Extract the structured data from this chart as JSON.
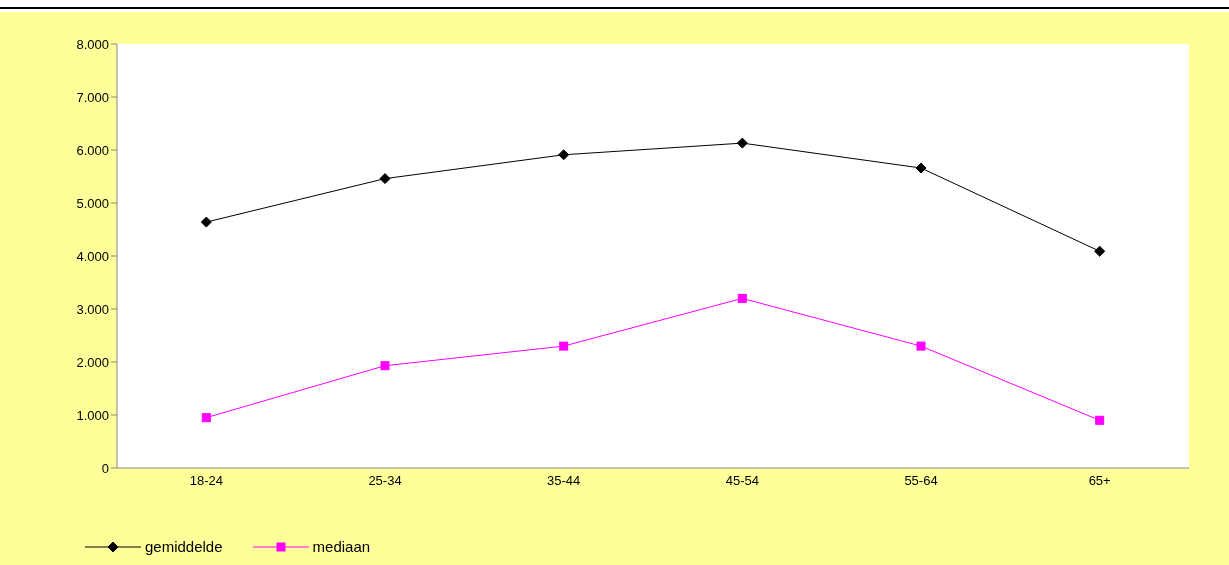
{
  "chart_data": {
    "type": "line",
    "categories": [
      "18-24",
      "25-34",
      "35-44",
      "45-54",
      "55-64",
      "65+"
    ],
    "series": [
      {
        "name": "gemiddelde",
        "color": "#000000",
        "marker": "diamond",
        "values": [
          4640,
          5460,
          5910,
          6130,
          5660,
          4090
        ]
      },
      {
        "name": "mediaan",
        "color": "#ff00ff",
        "marker": "square",
        "values": [
          950,
          1930,
          2300,
          3200,
          2300,
          900
        ]
      }
    ],
    "ylim": [
      0,
      8000
    ],
    "yticks": [
      0,
      {
        "value": 1000,
        "label": "1.000"
      },
      {
        "value": 2000,
        "label": "2.000"
      },
      {
        "value": 3000,
        "label": "3.000"
      },
      {
        "value": 4000,
        "label": "4.000"
      },
      {
        "value": 5000,
        "label": "5.000"
      },
      {
        "value": 6000,
        "label": "6.000"
      },
      {
        "value": 7000,
        "label": "7.000"
      },
      {
        "value": 8000,
        "label": "8.000"
      }
    ],
    "grid": false,
    "legend": "bottom left",
    "line_style": "solid"
  }
}
